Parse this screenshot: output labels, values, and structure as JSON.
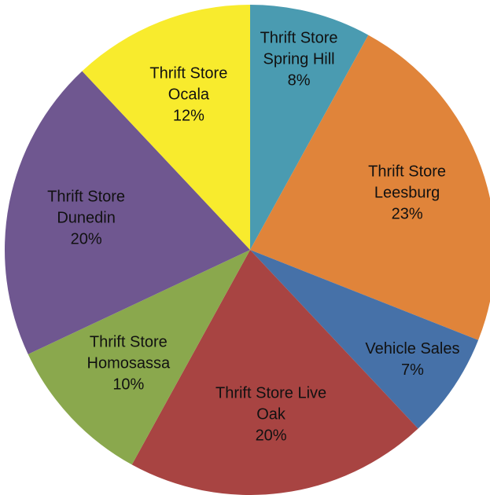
{
  "chart_data": {
    "type": "pie",
    "categories": [
      "Thrift Store Spring Hill",
      "Thrift Store Leesburg",
      "Vehicle Sales",
      "Thrift Store Live Oak",
      "Thrift Store Homosassa",
      "Thrift Store Dunedin",
      "Thrift Store Ocala"
    ],
    "values": [
      8,
      23,
      7,
      20,
      10,
      20,
      12
    ],
    "value_labels": [
      "8%",
      "23%",
      "7%",
      "20%",
      "10%",
      "20%",
      "12%"
    ],
    "colors": [
      "#4a9bb1",
      "#e0843a",
      "#4671a8",
      "#a84442",
      "#8aa84d",
      "#6f5790",
      "#f8eb2d"
    ]
  }
}
